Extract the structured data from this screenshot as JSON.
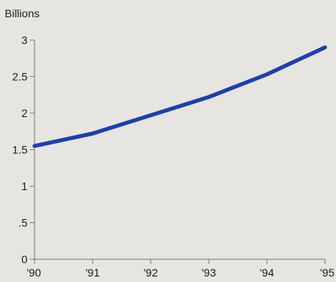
{
  "chart_data": {
    "type": "line",
    "title": "",
    "xlabel": "",
    "ylabel": "Billions",
    "x": [
      "'90",
      "'91",
      "'92",
      "'93",
      "'94",
      "'95"
    ],
    "series": [
      {
        "values": [
          1.55,
          1.72,
          1.97,
          2.22,
          2.53,
          2.9
        ]
      }
    ],
    "ylim": [
      0,
      3
    ],
    "yticks": [
      {
        "value": 0,
        "label": "0"
      },
      {
        "value": 0.5,
        "label": ".5"
      },
      {
        "value": 1,
        "label": "1"
      },
      {
        "value": 1.5,
        "label": "1.5"
      },
      {
        "value": 2,
        "label": "2"
      },
      {
        "value": 2.5,
        "label": "2.5"
      },
      {
        "value": 3,
        "label": "3"
      }
    ],
    "grid": false,
    "legend": "none",
    "colors": {
      "line": "#1e40a8",
      "axis": "#7a7a7a",
      "text": "#1c1c1c",
      "background": "#e6e5e1"
    }
  }
}
